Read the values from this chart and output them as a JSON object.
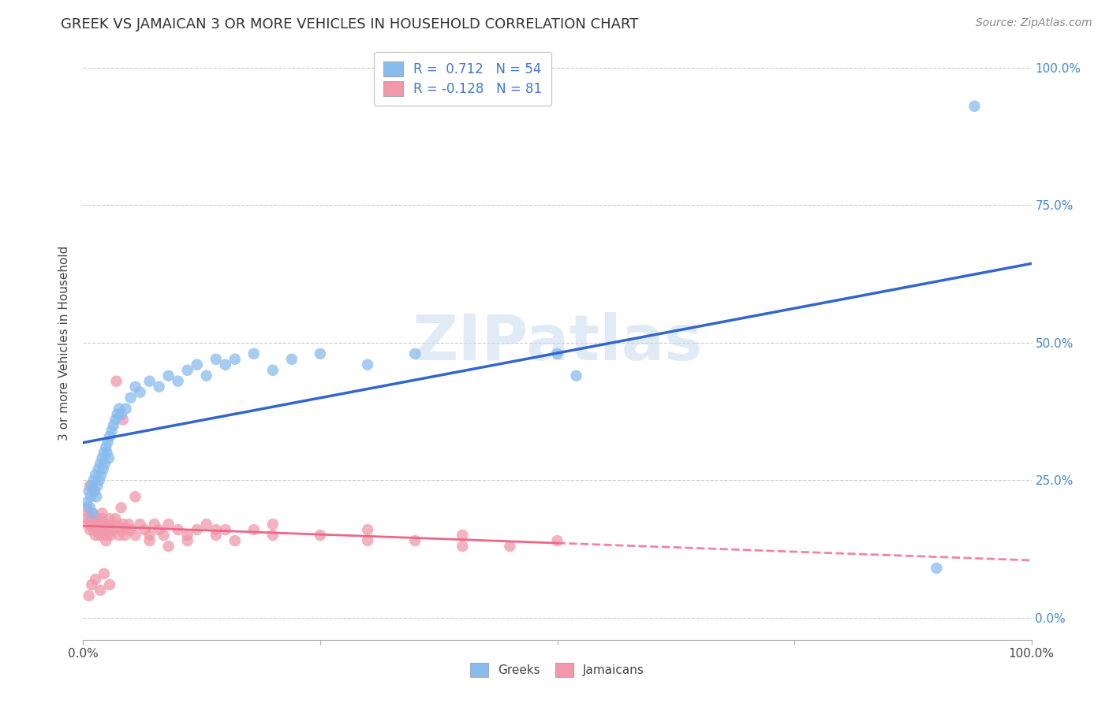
{
  "title": "GREEK VS JAMAICAN 3 OR MORE VEHICLES IN HOUSEHOLD CORRELATION CHART",
  "source": "Source: ZipAtlas.com",
  "ylabel": "3 or more Vehicles in Household",
  "watermark_text": "ZIPatlas",
  "xlim": [
    0.0,
    1.0
  ],
  "ylim": [
    -0.04,
    1.04
  ],
  "ytick_vals": [
    0.0,
    0.25,
    0.5,
    0.75,
    1.0
  ],
  "right_ytick_labels": [
    "0.0%",
    "25.0%",
    "50.0%",
    "75.0%",
    "100.0%"
  ],
  "greek_color": "#88bbee",
  "jamaican_color": "#f099aa",
  "greek_line_color": "#3366cc",
  "jamaican_line_color": "#ee6688",
  "greek_R": 0.712,
  "greek_N": 54,
  "jamaican_R": -0.128,
  "jamaican_N": 81,
  "legend_labels": [
    "Greeks",
    "Jamaicans"
  ],
  "background_color": "#ffffff",
  "grid_color": "#cccccc",
  "title_fontsize": 13,
  "greek_x": [
    0.004,
    0.006,
    0.007,
    0.008,
    0.009,
    0.01,
    0.011,
    0.012,
    0.013,
    0.014,
    0.015,
    0.016,
    0.017,
    0.018,
    0.019,
    0.02,
    0.021,
    0.022,
    0.023,
    0.024,
    0.025,
    0.026,
    0.027,
    0.028,
    0.03,
    0.032,
    0.034,
    0.036,
    0.038,
    0.04,
    0.045,
    0.05,
    0.055,
    0.06,
    0.07,
    0.08,
    0.09,
    0.1,
    0.11,
    0.12,
    0.13,
    0.14,
    0.15,
    0.16,
    0.18,
    0.2,
    0.22,
    0.25,
    0.3,
    0.35,
    0.5,
    0.52,
    0.9,
    0.94
  ],
  "greek_y": [
    0.21,
    0.23,
    0.2,
    0.22,
    0.24,
    0.19,
    0.25,
    0.23,
    0.26,
    0.22,
    0.24,
    0.27,
    0.25,
    0.28,
    0.26,
    0.29,
    0.27,
    0.3,
    0.28,
    0.31,
    0.3,
    0.32,
    0.29,
    0.33,
    0.34,
    0.35,
    0.36,
    0.37,
    0.38,
    0.37,
    0.38,
    0.4,
    0.42,
    0.41,
    0.43,
    0.42,
    0.44,
    0.43,
    0.45,
    0.46,
    0.44,
    0.47,
    0.46,
    0.47,
    0.48,
    0.45,
    0.47,
    0.48,
    0.46,
    0.48,
    0.48,
    0.44,
    0.09,
    0.93
  ],
  "jamaican_x": [
    0.003,
    0.004,
    0.005,
    0.006,
    0.007,
    0.008,
    0.009,
    0.01,
    0.011,
    0.012,
    0.013,
    0.014,
    0.015,
    0.016,
    0.017,
    0.018,
    0.019,
    0.02,
    0.021,
    0.022,
    0.023,
    0.024,
    0.025,
    0.026,
    0.027,
    0.028,
    0.029,
    0.03,
    0.032,
    0.034,
    0.036,
    0.038,
    0.04,
    0.042,
    0.044,
    0.046,
    0.048,
    0.05,
    0.055,
    0.06,
    0.065,
    0.07,
    0.075,
    0.08,
    0.085,
    0.09,
    0.1,
    0.11,
    0.12,
    0.13,
    0.14,
    0.15,
    0.16,
    0.18,
    0.2,
    0.25,
    0.3,
    0.35,
    0.4,
    0.45,
    0.5,
    0.006,
    0.009,
    0.013,
    0.018,
    0.022,
    0.028,
    0.035,
    0.042,
    0.055,
    0.07,
    0.09,
    0.11,
    0.14,
    0.2,
    0.3,
    0.4,
    0.007,
    0.012,
    0.02,
    0.04
  ],
  "jamaican_y": [
    0.18,
    0.2,
    0.17,
    0.19,
    0.16,
    0.18,
    0.17,
    0.19,
    0.16,
    0.18,
    0.15,
    0.17,
    0.16,
    0.18,
    0.15,
    0.17,
    0.16,
    0.18,
    0.15,
    0.17,
    0.16,
    0.14,
    0.17,
    0.15,
    0.16,
    0.18,
    0.15,
    0.17,
    0.16,
    0.18,
    0.17,
    0.15,
    0.16,
    0.17,
    0.15,
    0.16,
    0.17,
    0.16,
    0.15,
    0.17,
    0.16,
    0.15,
    0.17,
    0.16,
    0.15,
    0.17,
    0.16,
    0.15,
    0.16,
    0.17,
    0.15,
    0.16,
    0.14,
    0.16,
    0.17,
    0.15,
    0.16,
    0.14,
    0.15,
    0.13,
    0.14,
    0.04,
    0.06,
    0.07,
    0.05,
    0.08,
    0.06,
    0.43,
    0.36,
    0.22,
    0.14,
    0.13,
    0.14,
    0.16,
    0.15,
    0.14,
    0.13,
    0.24,
    0.23,
    0.19,
    0.2
  ]
}
